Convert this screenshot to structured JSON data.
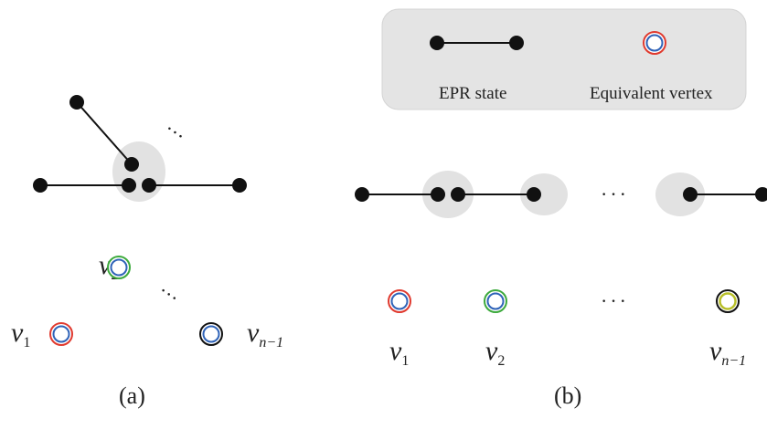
{
  "legend": {
    "epr_label": "EPR state",
    "vertex_label": "Equivalent vertex"
  },
  "panel_a": {
    "caption": "(a)",
    "ellipsis": "…",
    "vertices": [
      {
        "name": "v",
        "sub": "1",
        "ring_color": "#e03a2f"
      },
      {
        "name": "v",
        "sub": "2",
        "ring_color": "#3daa3d"
      },
      {
        "name": "v",
        "sub": "n−1",
        "ring_color": "#111111"
      }
    ]
  },
  "panel_b": {
    "caption": "(b)",
    "ellipsis": "···",
    "vertices": [
      {
        "name": "v",
        "sub": "1",
        "ring_color": "#e03a2f"
      },
      {
        "name": "v",
        "sub": "2",
        "ring_color": "#3daa3d"
      },
      {
        "name": "v",
        "sub": "n−1",
        "ring_color": "#b8bf2a"
      }
    ]
  },
  "colors": {
    "inner_ring": "#2f63b8",
    "group_fill": "#e2e2e2",
    "legend_fill": "#e4e4e4",
    "node": "#111111"
  }
}
